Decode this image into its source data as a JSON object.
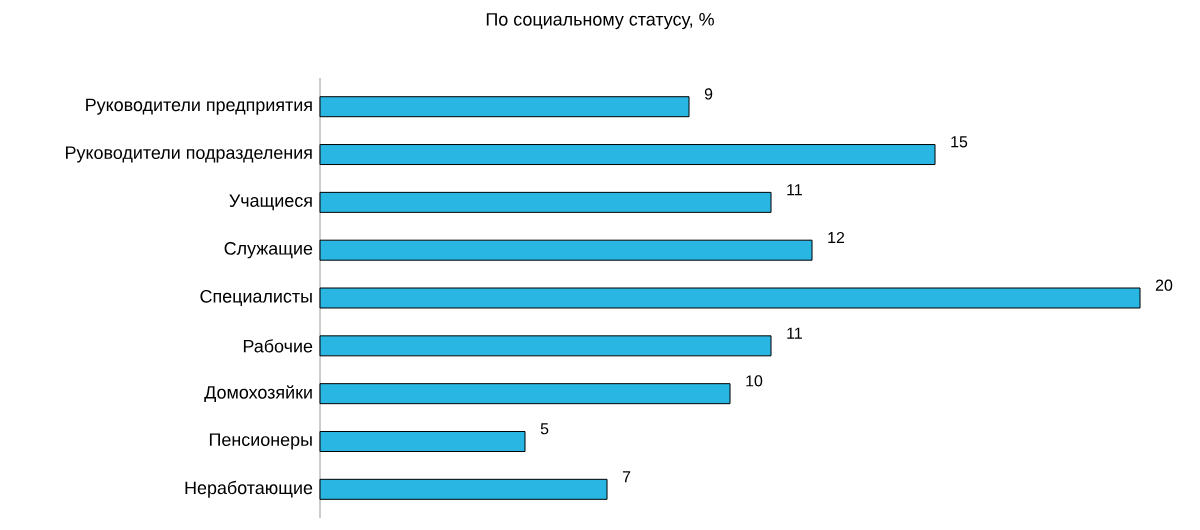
{
  "chart_data": {
    "type": "bar",
    "orientation": "horizontal",
    "title": "По социальному  статусу, %",
    "categories": [
      "Руководители предприятия",
      "Руководители подразделения",
      "Учащиеся",
      "Служащие",
      "Специалисты",
      "Рабочие",
      "Домохозяйки",
      "Пенсионеры",
      "Неработающие"
    ],
    "values": [
      9,
      15,
      11,
      12,
      20,
      11,
      10,
      5,
      7
    ],
    "color": "#29b6e3",
    "data_labels": true
  }
}
